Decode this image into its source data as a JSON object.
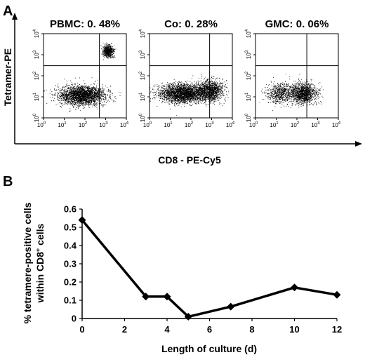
{
  "panel_a": {
    "label": "A",
    "y_axis_label": "Tetramer-PE",
    "x_axis_label": "CD8 - PE-Cy5",
    "tick_base": "10",
    "tick_exponents": [
      "0",
      "1",
      "2",
      "3",
      "4"
    ]
  },
  "panel_b": {
    "label": "B"
  },
  "chart_data": [
    {
      "type": "scatter",
      "title": "PBMC: 0. 48%",
      "xlabel": "CD8 - PE-Cy5",
      "ylabel": "Tetramer-PE",
      "x_scale": "log",
      "y_scale": "log",
      "xlim": [
        1,
        10000
      ],
      "ylim": [
        1,
        10000
      ],
      "gate_x": 500,
      "gate_y": 300,
      "clusters": [
        {
          "x": 70,
          "y": 12,
          "spread": "wide-horizontal",
          "density": "very-high"
        },
        {
          "x": 1300,
          "y": 1500,
          "spread": "small",
          "density": "medium"
        }
      ]
    },
    {
      "type": "scatter",
      "title": "Co: 0. 28%",
      "xlabel": "CD8 - PE-Cy5",
      "ylabel": "Tetramer-PE",
      "x_scale": "log",
      "y_scale": "log",
      "xlim": [
        1,
        10000
      ],
      "ylim": [
        1,
        10000
      ],
      "gate_x": 800,
      "gate_y": 300,
      "clusters": [
        {
          "x": 40,
          "y": 15,
          "spread": "wide-horizontal",
          "density": "very-high"
        },
        {
          "x": 800,
          "y": 20,
          "spread": "medium",
          "density": "high"
        }
      ]
    },
    {
      "type": "scatter",
      "title": "GMC: 0. 06%",
      "xlabel": "CD8 - PE-Cy5",
      "ylabel": "Tetramer-PE",
      "x_scale": "log",
      "y_scale": "log",
      "xlim": [
        1,
        10000
      ],
      "ylim": [
        1,
        10000
      ],
      "gate_x": 300,
      "gate_y": 300,
      "clusters": [
        {
          "x": 15,
          "y": 15,
          "spread": "medium",
          "density": "medium"
        },
        {
          "x": 200,
          "y": 15,
          "spread": "medium",
          "density": "high"
        }
      ]
    },
    {
      "type": "line",
      "xlabel": "Length of culture (d)",
      "ylabel_line1": "% tetramere-positive cells",
      "ylabel_line2_prefix": "within CD8",
      "ylabel_line2_sup": "+",
      "ylabel_line2_suffix": " cells",
      "x": [
        0,
        3,
        4,
        5,
        7,
        10,
        12
      ],
      "y": [
        0.54,
        0.12,
        0.12,
        0.01,
        0.065,
        0.17,
        0.13
      ],
      "xlim": [
        0,
        12
      ],
      "ylim": [
        0,
        0.6
      ],
      "x_ticks": [
        "0",
        "2",
        "4",
        "6",
        "8",
        "10",
        "12"
      ],
      "y_ticks": [
        "0",
        "0.1",
        "0.2",
        "0.3",
        "0.4",
        "0.5",
        "0.6"
      ],
      "marker": "diamond",
      "color": "#000000"
    }
  ]
}
